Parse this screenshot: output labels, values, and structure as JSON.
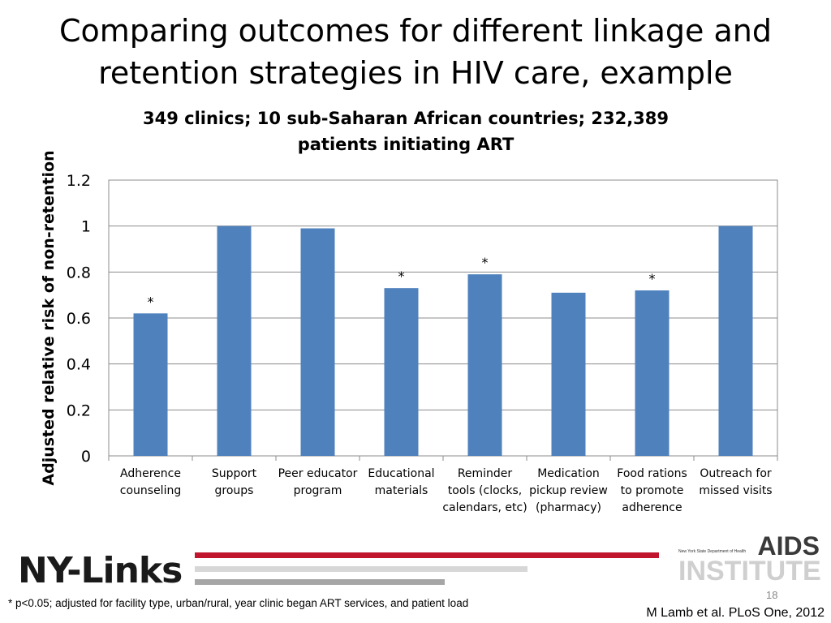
{
  "slide": {
    "title_line1": "Comparing outcomes for different linkage and",
    "title_line2": "retention strategies in HIV care, example",
    "footnote": "* p<0.05; adjusted for facility type, urban/rural, year clinic began ART services, and patient load",
    "citation": "M Lamb et al. PLoS One, 2012",
    "page_number": "18"
  },
  "logos": {
    "left": "NY-Links",
    "right_top": "AIDS",
    "right_dept": "New York State Department of Health",
    "right_bottom": "INSTITUTE"
  },
  "colors": {
    "bar": "#4f81bd",
    "grid": "#8c8c8c",
    "accent_red": "#c0152d"
  },
  "chart_data": {
    "type": "bar",
    "title_line1": "349 clinics; 10 sub-Saharan African countries; 232,389",
    "title_line2": "patients initiating ART",
    "ylabel": "Adjusted relative risk of non-retention",
    "xlabel": "",
    "ylim": [
      0,
      1.2
    ],
    "yticks": [
      "0",
      "0.2",
      "0.4",
      "0.6",
      "0.8",
      "1",
      "1.2"
    ],
    "grid": true,
    "categories": [
      [
        "Adherence",
        "counseling"
      ],
      [
        "Support",
        "groups"
      ],
      [
        "Peer educator",
        "program"
      ],
      [
        "Educational",
        "materials"
      ],
      [
        "Reminder",
        "tools (clocks,",
        "calendars, etc)"
      ],
      [
        "Medication",
        "pickup review",
        "(pharmacy)"
      ],
      [
        "Food rations",
        "to promote",
        "adherence"
      ],
      [
        "Outreach for",
        "missed visits"
      ]
    ],
    "values": [
      0.62,
      1.0,
      0.99,
      0.73,
      0.79,
      0.71,
      0.72,
      1.0
    ],
    "significance": [
      "*",
      "",
      "",
      "*",
      "*",
      "",
      "*",
      ""
    ]
  }
}
